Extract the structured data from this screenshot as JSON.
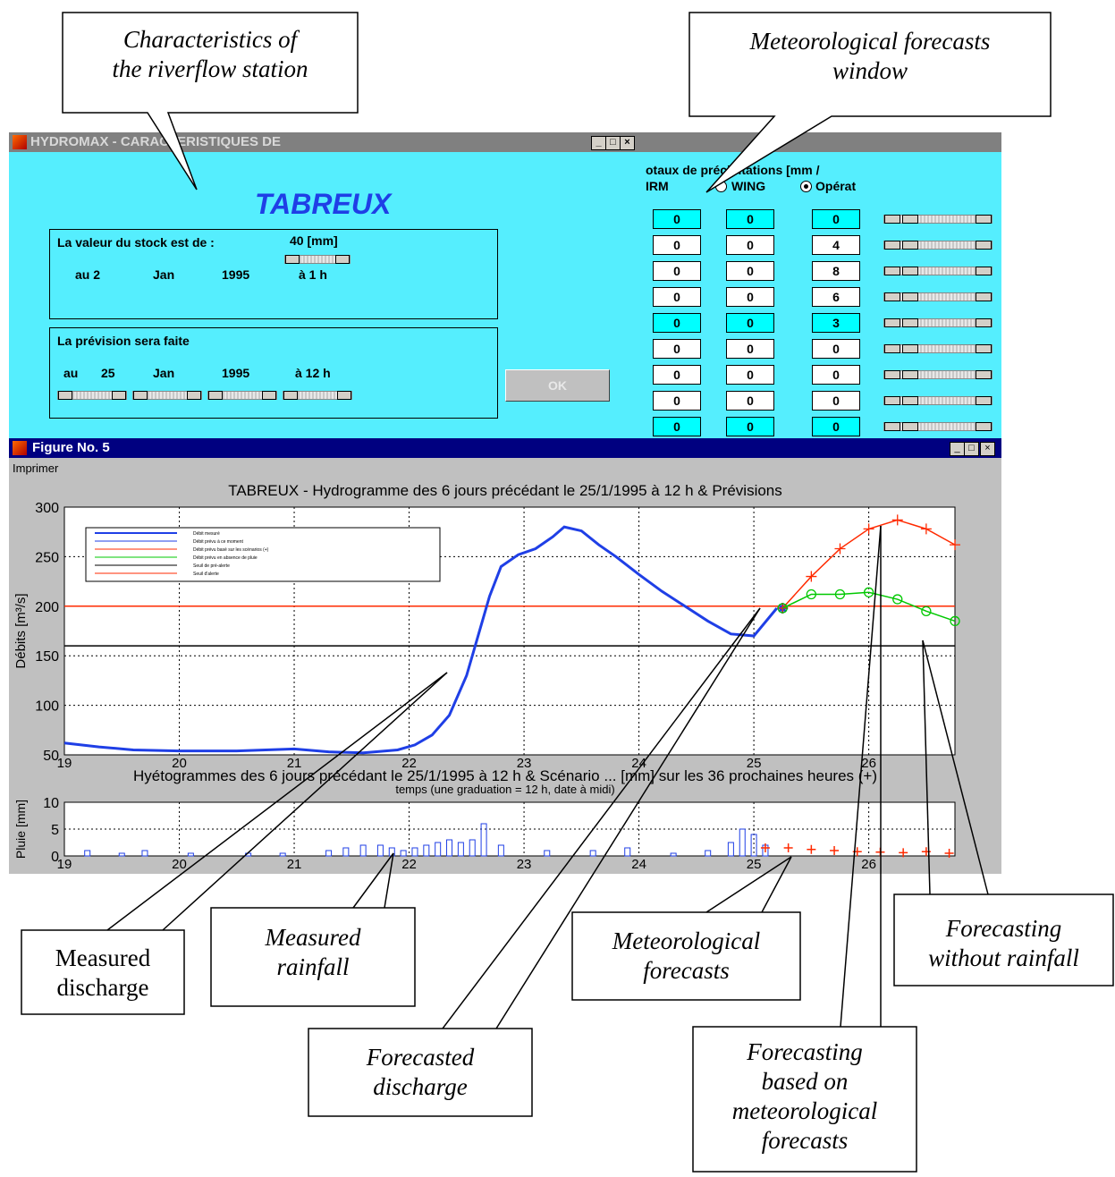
{
  "callouts": {
    "characteristics": [
      "Characteristics of",
      "the riverflow station"
    ],
    "meteo_window": [
      "Meteorological forecasts",
      "window"
    ],
    "measured_discharge": [
      "Measured",
      "discharge"
    ],
    "measured_rainfall": [
      "Measured",
      "rainfall"
    ],
    "forecasted_discharge": [
      "Forecasted",
      "discharge"
    ],
    "meteo_forecasts": [
      "Meteorological",
      "forecasts"
    ],
    "forecasting_without_rainfall": [
      "Forecasting",
      "without rainfall"
    ],
    "forecasting_based": [
      "Forecasting",
      "based on",
      "meteorological",
      "forecasts"
    ]
  },
  "station_window": {
    "title": "HYDROMAX - CARACTERISTIQUES DE",
    "station_name": "TABREUX",
    "stock_label": "La valeur du stock est de :",
    "stock_value": "40 [mm]",
    "stock_day": "au 2",
    "stock_month": "Jan",
    "stock_year": "1995",
    "stock_hour": "à 1 h",
    "forecast_label": "La prévision sera faite",
    "fc_au": "au",
    "fc_day": "25",
    "fc_month": "Jan",
    "fc_year": "1995",
    "fc_hour": "à 12 h",
    "ok_label": "OK"
  },
  "meteo_window": {
    "header": "otaux de précipitations [mm /",
    "col_irm": "IRM",
    "col_wing": "WING",
    "col_operateur": "Opérat",
    "rows": [
      [
        "0",
        "0",
        "0"
      ],
      [
        "0",
        "0",
        "4"
      ],
      [
        "0",
        "0",
        "8"
      ],
      [
        "0",
        "0",
        "6"
      ],
      [
        "0",
        "0",
        "3"
      ],
      [
        "0",
        "0",
        "0"
      ],
      [
        "0",
        "0",
        "0"
      ],
      [
        "0",
        "0",
        "0"
      ],
      [
        "0",
        "0",
        "0"
      ]
    ],
    "highlight_rows": [
      0,
      4,
      8
    ]
  },
  "figure_window": {
    "title": "Figure No. 5",
    "menu_print": "Imprimer",
    "top_title": "TABREUX - Hydrogramme des 6 jours précédant le 25/1/1995 à 12 h & Prévisions",
    "bottom_title": "Hyétogrammes des 6 jours précédant le 25/1/1995 à 12 h & Scénario ... [mm] sur les 36 prochaines heures (+)",
    "xlabel": "temps (une graduation = 12 h, date à midi)",
    "legend": [
      "Débit mesuré",
      "Débit prévu à ce moment",
      "Débit prévu basé sur les scénarios (+)",
      "Débit prévu en absence de pluie",
      "Seuil de pré-alerte",
      "Seuil d'alerte"
    ]
  },
  "chart_data": [
    {
      "type": "line",
      "title": "TABREUX - Hydrogramme des 6 jours précédant le 25/1/1995 à 12 h & Prévisions",
      "xlabel": "",
      "ylabel": "Débits [m³/s]",
      "xlim": [
        19,
        26.75
      ],
      "ylim": [
        50,
        300
      ],
      "x_ticks": [
        19,
        20,
        21,
        22,
        23,
        24,
        25,
        26
      ],
      "y_ticks": [
        50,
        100,
        150,
        200,
        250,
        300
      ],
      "grid": true,
      "legend_position": "top-left",
      "thresholds": [
        {
          "value": 200,
          "color": "#ff2a00"
        },
        {
          "value": 160,
          "color": "#000000"
        }
      ],
      "series": [
        {
          "color": "#1f3fe6",
          "x": [
            19,
            19.3,
            19.6,
            20,
            20.5,
            21,
            21.3,
            21.6,
            21.9,
            22.05,
            22.2,
            22.35,
            22.5,
            22.6,
            22.7,
            22.8,
            22.95,
            23.1,
            23.25,
            23.35,
            23.5,
            23.65,
            23.8,
            24,
            24.2,
            24.4,
            24.6,
            24.8,
            25,
            25.2
          ],
          "y": [
            62,
            58,
            55,
            54,
            54,
            56,
            53,
            52,
            55,
            60,
            70,
            90,
            130,
            170,
            210,
            240,
            252,
            258,
            270,
            280,
            276,
            262,
            250,
            232,
            215,
            200,
            185,
            172,
            170,
            198
          ]
        },
        {
          "color": "#1f3fe6",
          "marker": "star",
          "x": [
            25.25
          ],
          "y": [
            198
          ]
        },
        {
          "color": "#ff2a00",
          "marker": "+",
          "x": [
            25.25,
            25.5,
            25.75,
            26,
            26.25,
            26.5,
            26.75
          ],
          "y": [
            198,
            230,
            258,
            278,
            287,
            278,
            262
          ]
        },
        {
          "color": "#00c800",
          "marker": "o",
          "x": [
            25.25,
            25.5,
            25.75,
            26,
            26.25,
            26.5,
            26.75
          ],
          "y": [
            198,
            212,
            212,
            214,
            207,
            195,
            185
          ]
        }
      ]
    },
    {
      "type": "bar",
      "title": "Hyétogrammes des 6 jours précédant le 25/1/1995 à 12 h & Scénario ... [mm] sur les 36 prochaines heures (+)",
      "xlabel": "temps (une graduation = 12 h, date à midi)",
      "ylabel": "Pluie [mm]",
      "xlim": [
        19,
        26.75
      ],
      "ylim": [
        0,
        10
      ],
      "x_ticks": [
        19,
        20,
        21,
        22,
        23,
        24,
        25,
        26
      ],
      "y_ticks": [
        0,
        5,
        10
      ],
      "grid": true,
      "series": [
        {
          "name": "measured",
          "color": "#1f3fe6",
          "x": [
            19.2,
            19.5,
            19.7,
            20.1,
            20.6,
            20.9,
            21.3,
            21.45,
            21.6,
            21.75,
            21.85,
            21.95,
            22.05,
            22.15,
            22.25,
            22.35,
            22.45,
            22.55,
            22.65,
            22.8,
            23.2,
            23.6,
            23.9,
            24.3,
            24.6,
            24.8,
            24.9,
            25.0,
            25.1
          ],
          "y": [
            1,
            0.5,
            1,
            0.5,
            0.5,
            0.5,
            1,
            1.5,
            2,
            2,
            1.5,
            1,
            1.5,
            2,
            2.5,
            3,
            2.5,
            3,
            6,
            2,
            1,
            1,
            1.5,
            0.5,
            1,
            2.5,
            5,
            4,
            2
          ]
        },
        {
          "name": "scenario",
          "color": "#ff2a00",
          "marker": "+",
          "x": [
            25.1,
            25.3,
            25.5,
            25.7,
            25.9,
            26.1,
            26.3,
            26.5,
            26.7
          ],
          "y": [
            1.5,
            1.5,
            1.2,
            1,
            0.8,
            0.7,
            0.6,
            0.8,
            0.5
          ]
        }
      ]
    }
  ]
}
